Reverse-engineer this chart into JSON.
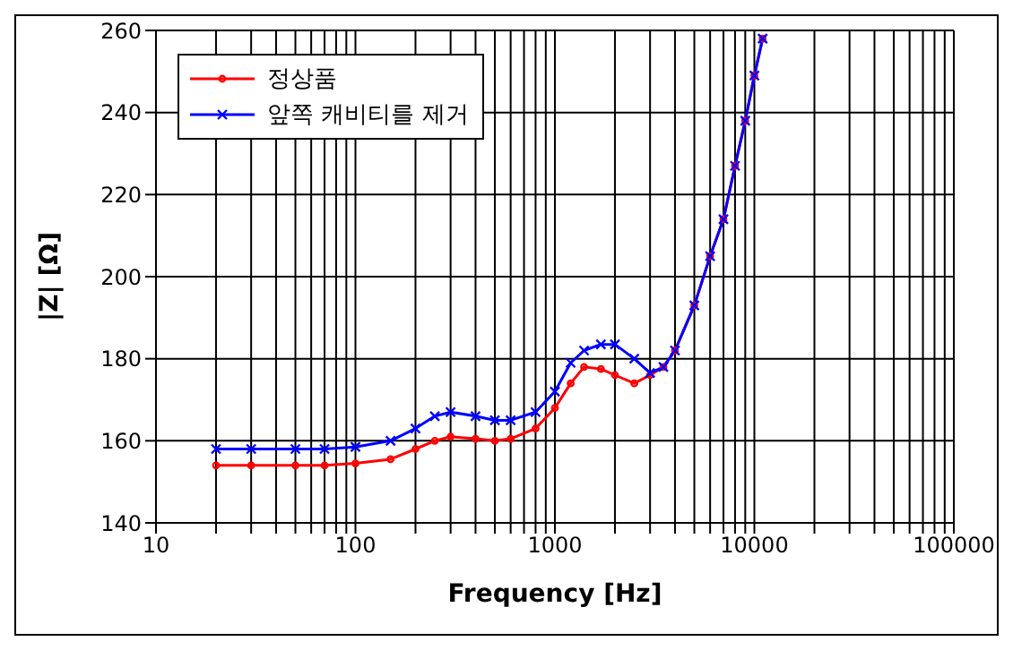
{
  "chart_data": {
    "type": "line",
    "xlabel": "Frequency [Hz]",
    "ylabel": "|Z| [Ω]",
    "x": [
      20,
      30,
      50,
      70,
      100,
      150,
      200,
      250,
      300,
      400,
      500,
      600,
      800,
      1000,
      1200,
      1400,
      1700,
      2000,
      2500,
      3000,
      3500,
      4000,
      5000,
      6000,
      7000,
      8000,
      9000,
      10000,
      11000
    ],
    "series": [
      {
        "name": "정상품",
        "color": "#ff0000",
        "marker": "circle",
        "values": [
          154,
          154,
          154,
          154,
          154.5,
          155.5,
          158,
          160,
          161,
          160.5,
          160,
          160.5,
          163,
          168,
          174,
          178,
          177.5,
          176,
          174,
          176,
          178,
          182,
          193,
          205,
          214,
          227,
          238,
          249,
          258
        ]
      },
      {
        "name": "앞쪽 캐비티를 제거",
        "color": "#0000ff",
        "marker": "cross",
        "values": [
          158,
          158,
          158,
          158,
          158.5,
          160,
          163,
          166,
          167,
          166,
          165,
          165,
          167,
          172,
          179,
          182,
          183.5,
          183.5,
          180,
          176.5,
          178,
          182,
          193,
          205,
          214,
          227,
          238,
          249,
          258
        ]
      }
    ],
    "log": "x",
    "xlim": [
      10,
      100000
    ],
    "ylim": [
      140,
      260
    ],
    "xticks": [
      10,
      {
        "value": 20,
        "label": null
      },
      {
        "value": 30,
        "label": null
      },
      {
        "value": 40,
        "label": null
      },
      {
        "value": 50,
        "label": null
      },
      {
        "value": 60,
        "label": null
      },
      {
        "value": 70,
        "label": null
      },
      {
        "value": 80,
        "label": null
      },
      {
        "value": 90,
        "label": null
      },
      100,
      {
        "value": 200,
        "label": null
      },
      {
        "value": 300,
        "label": null
      },
      {
        "value": 400,
        "label": null
      },
      {
        "value": 500,
        "label": null
      },
      {
        "value": 600,
        "label": null
      },
      {
        "value": 700,
        "label": null
      },
      {
        "value": 800,
        "label": null
      },
      {
        "value": 900,
        "label": null
      },
      1000,
      {
        "value": 2000,
        "label": null
      },
      {
        "value": 3000,
        "label": null
      },
      {
        "value": 4000,
        "label": null
      },
      {
        "value": 5000,
        "label": null
      },
      {
        "value": 6000,
        "label": null
      },
      {
        "value": 7000,
        "label": null
      },
      {
        "value": 8000,
        "label": null
      },
      {
        "value": 9000,
        "label": null
      },
      10000,
      {
        "value": 20000,
        "label": null
      },
      {
        "value": 30000,
        "label": null
      },
      {
        "value": 40000,
        "label": null
      },
      {
        "value": 50000,
        "label": null
      },
      {
        "value": 60000,
        "label": null
      },
      {
        "value": 70000,
        "label": null
      },
      {
        "value": 80000,
        "label": null
      },
      {
        "value": 90000,
        "label": null
      },
      100000
    ],
    "yticks": [
      140,
      160,
      180,
      200,
      220,
      240,
      260
    ],
    "grid": true,
    "legend": "top left",
    "line_style": "solid"
  }
}
